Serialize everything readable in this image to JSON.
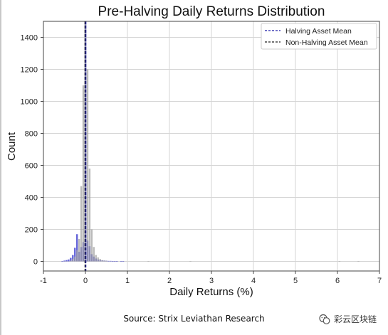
{
  "chart_data": {
    "type": "bar",
    "title": "Pre-Halving Daily Returns Distribution",
    "xlabel": "Daily Returns (%)",
    "ylabel": "Count",
    "xlim": [
      -1,
      7
    ],
    "ylim": [
      -60,
      1500
    ],
    "xticks": [
      -1,
      0,
      1,
      2,
      3,
      4,
      5,
      6,
      7
    ],
    "yticks": [
      0,
      200,
      400,
      600,
      800,
      1000,
      1200,
      1400
    ],
    "grid": true,
    "legend_position": "top-right",
    "bin_width": 0.05,
    "series": [
      {
        "name": "",
        "color": "#3333cc",
        "opacity": 0.75,
        "bins": [
          {
            "x": -0.55,
            "y": 2
          },
          {
            "x": -0.5,
            "y": 5
          },
          {
            "x": -0.45,
            "y": 8
          },
          {
            "x": -0.4,
            "y": 12
          },
          {
            "x": -0.35,
            "y": 22
          },
          {
            "x": -0.3,
            "y": 40
          },
          {
            "x": -0.25,
            "y": 85
          },
          {
            "x": -0.2,
            "y": 170
          },
          {
            "x": -0.15,
            "y": 60
          },
          {
            "x": -0.1,
            "y": 90
          },
          {
            "x": -0.05,
            "y": 120
          },
          {
            "x": 0.0,
            "y": 1500
          },
          {
            "x": 0.05,
            "y": 130
          },
          {
            "x": 0.1,
            "y": 95
          },
          {
            "x": 0.15,
            "y": 45
          },
          {
            "x": 0.2,
            "y": 30
          },
          {
            "x": 0.25,
            "y": 18
          },
          {
            "x": 0.3,
            "y": 12
          },
          {
            "x": 0.35,
            "y": 8
          },
          {
            "x": 0.4,
            "y": 6
          },
          {
            "x": 0.45,
            "y": 5
          },
          {
            "x": 0.5,
            "y": 4
          },
          {
            "x": 0.55,
            "y": 3
          },
          {
            "x": 0.6,
            "y": 3
          },
          {
            "x": 0.65,
            "y": 2
          },
          {
            "x": 0.7,
            "y": 2
          },
          {
            "x": 0.75,
            "y": 1
          },
          {
            "x": 0.85,
            "y": 1
          },
          {
            "x": 0.9,
            "y": 1
          }
        ]
      },
      {
        "name": "",
        "color": "#9e9e9e",
        "opacity": 0.7,
        "bins": [
          {
            "x": -0.35,
            "y": 5
          },
          {
            "x": -0.3,
            "y": 15
          },
          {
            "x": -0.25,
            "y": 30
          },
          {
            "x": -0.2,
            "y": 70
          },
          {
            "x": -0.15,
            "y": 140
          },
          {
            "x": -0.1,
            "y": 470
          },
          {
            "x": -0.05,
            "y": 1100
          },
          {
            "x": 0.0,
            "y": 1500
          },
          {
            "x": 0.05,
            "y": 1200
          },
          {
            "x": 0.1,
            "y": 580
          },
          {
            "x": 0.15,
            "y": 200
          },
          {
            "x": 0.2,
            "y": 90
          },
          {
            "x": 0.25,
            "y": 40
          },
          {
            "x": 0.3,
            "y": 25
          },
          {
            "x": 0.35,
            "y": 15
          },
          {
            "x": 0.4,
            "y": 8
          },
          {
            "x": 0.45,
            "y": 5
          },
          {
            "x": 0.5,
            "y": 4
          },
          {
            "x": 1.5,
            "y": 1
          },
          {
            "x": 2.5,
            "y": 1
          },
          {
            "x": 6.05,
            "y": 1
          },
          {
            "x": 6.5,
            "y": 1
          }
        ]
      }
    ],
    "mean_lines": [
      {
        "label": "Halving Asset Mean",
        "x": 0.01,
        "color": "#1f1fa8"
      },
      {
        "label": "Non-Halving Asset Mean",
        "x": -0.01,
        "color": "#222222"
      }
    ]
  },
  "footer": {
    "source": "Source: Strix Leviathan Research",
    "watermark": "彩云区块链"
  }
}
